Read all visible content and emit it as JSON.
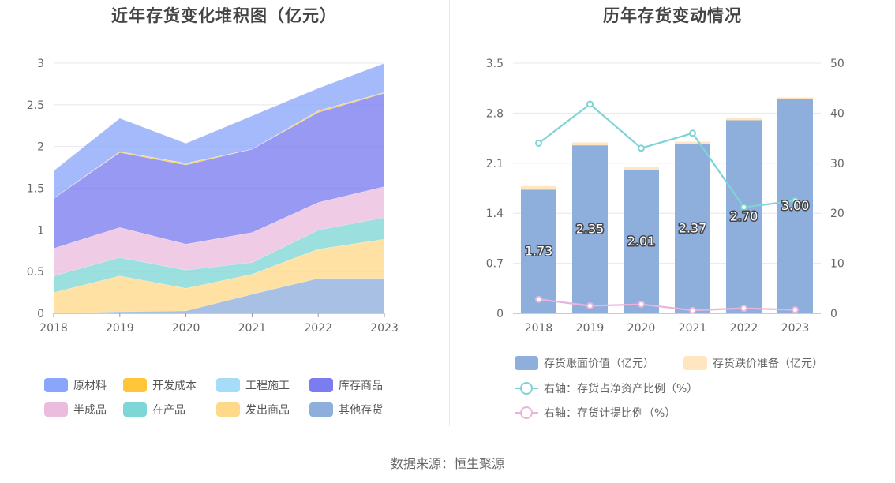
{
  "footer": {
    "source": "数据来源：恒生聚源"
  },
  "chart_data": [
    {
      "type": "area",
      "stacked": true,
      "title": "近年存货变化堆积图（亿元）",
      "x": [
        "2018",
        "2019",
        "2020",
        "2021",
        "2022",
        "2023"
      ],
      "ylim": [
        0,
        3
      ],
      "yticks": [
        "0",
        "0.5",
        "1",
        "1.5",
        "2",
        "2.5",
        "3"
      ],
      "series": [
        {
          "name": "其他存货",
          "color": "#8eaedc",
          "values": [
            0.0,
            0.02,
            0.03,
            0.23,
            0.42,
            0.42
          ]
        },
        {
          "name": "发出商品",
          "color": "#ffd98a",
          "values": [
            0.25,
            0.43,
            0.27,
            0.24,
            0.35,
            0.47
          ]
        },
        {
          "name": "在产品",
          "color": "#7fd6d6",
          "values": [
            0.2,
            0.22,
            0.22,
            0.14,
            0.23,
            0.26
          ]
        },
        {
          "name": "半成品",
          "color": "#ecbcdf",
          "values": [
            0.33,
            0.36,
            0.31,
            0.36,
            0.33,
            0.37
          ]
        },
        {
          "name": "库存商品",
          "color": "#7b7cf0",
          "values": [
            0.6,
            0.9,
            0.95,
            1.0,
            1.08,
            1.12
          ]
        },
        {
          "name": "开发成本",
          "color": "#ffc63a",
          "values": [
            0.0,
            0.01,
            0.02,
            0.0,
            0.02,
            0.01
          ]
        },
        {
          "name": "工程施工",
          "color": "#a6dcf7",
          "values": [
            0.0,
            0.0,
            0.0,
            0.0,
            0.0,
            0.0
          ]
        },
        {
          "name": "原材料",
          "color": "#8aa6fa",
          "values": [
            0.33,
            0.4,
            0.24,
            0.4,
            0.27,
            0.35
          ]
        }
      ],
      "legend_order": [
        "原材料",
        "开发成本",
        "工程施工",
        "库存商品",
        "半成品",
        "在产品",
        "发出商品",
        "其他存货"
      ]
    },
    {
      "type": "bar",
      "stacked": true,
      "title": "历年存货变动情况",
      "categories": [
        "2018",
        "2019",
        "2020",
        "2021",
        "2022",
        "2023"
      ],
      "ylim": [
        0,
        3.5
      ],
      "yticks": [
        "0",
        "0.7",
        "1.4",
        "2.1",
        "2.8",
        "3.5"
      ],
      "y2lim": [
        0,
        50
      ],
      "y2ticks": [
        "0",
        "10",
        "20",
        "30",
        "40",
        "50"
      ],
      "series": [
        {
          "name": "存货账面价值（亿元）",
          "color": "#8eaedc",
          "values": [
            1.73,
            2.35,
            2.01,
            2.37,
            2.7,
            3.0
          ],
          "labels": [
            "1.73",
            "2.35",
            "2.01",
            "2.37",
            "2.70",
            "3.00"
          ]
        },
        {
          "name": "存货跌价准备（亿元）",
          "color": "#ffe5c0",
          "values": [
            0.05,
            0.04,
            0.04,
            0.03,
            0.03,
            0.02
          ]
        }
      ],
      "line_series": [
        {
          "name": "右轴：存货占净资产比例（%）",
          "color": "#7fd3d5",
          "values": [
            34.0,
            41.8,
            33.0,
            36.0,
            21.2,
            22.5
          ]
        },
        {
          "name": "右轴：存货计提比例（%）",
          "color": "#e8b4dc",
          "values": [
            2.8,
            1.5,
            1.8,
            0.6,
            1.0,
            0.7
          ]
        }
      ]
    }
  ]
}
